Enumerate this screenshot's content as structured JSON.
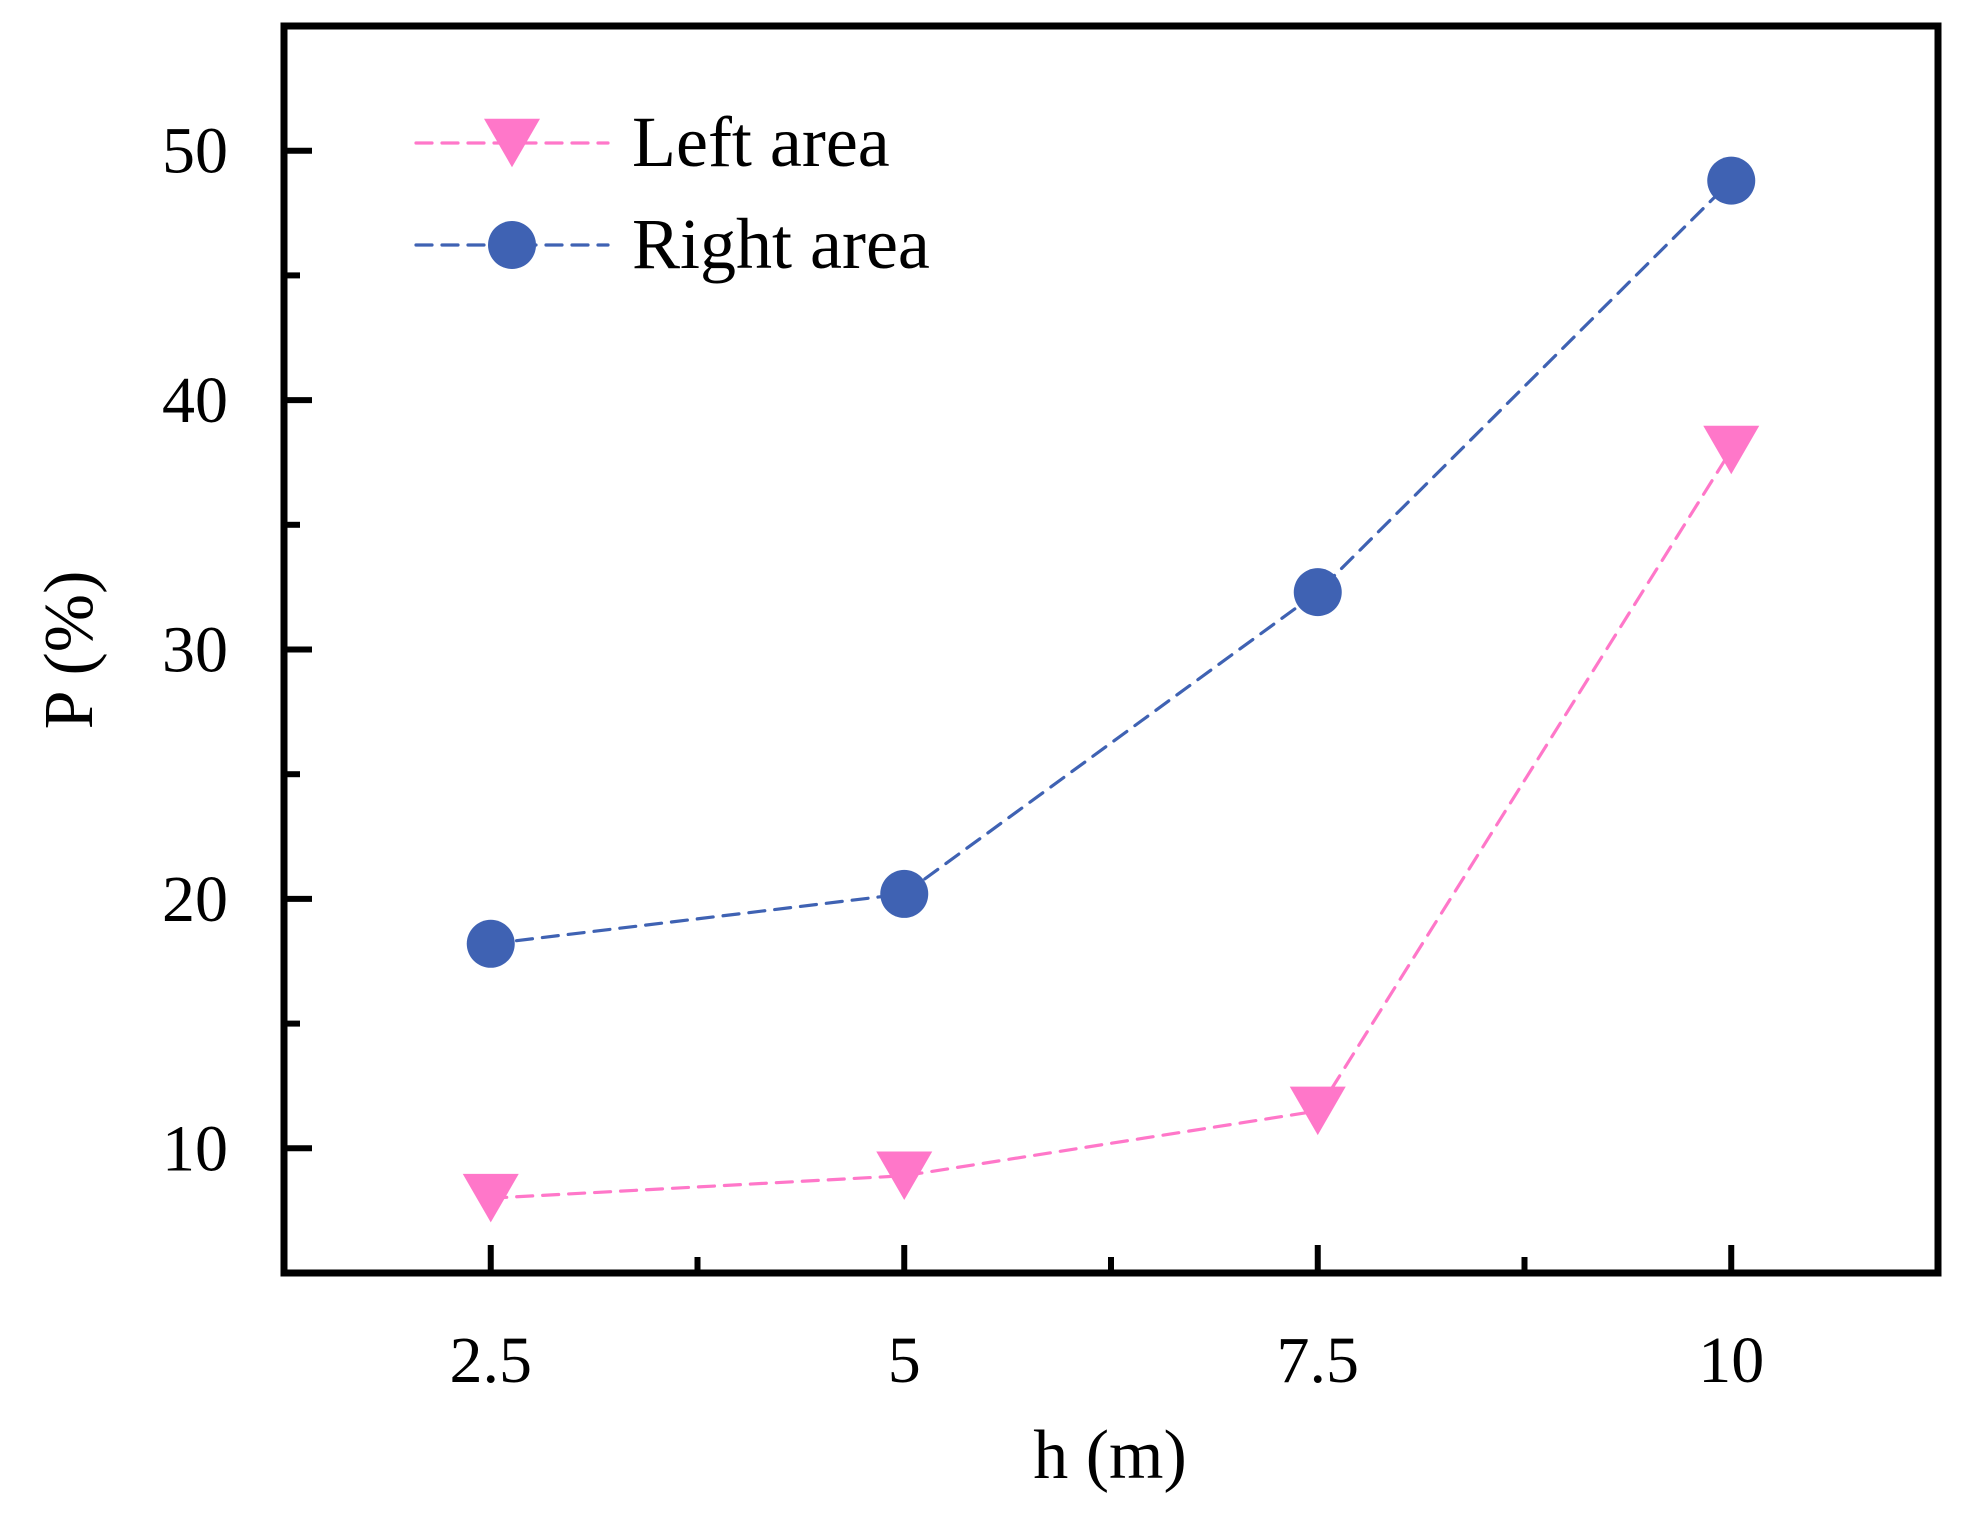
{
  "chart_data": {
    "type": "line",
    "title": "",
    "xlabel": "h (m)",
    "ylabel": "P (%)",
    "categories": [
      "2.5",
      "5",
      "7.5",
      "10"
    ],
    "x": [
      2.5,
      5,
      7.5,
      10
    ],
    "xlim": [
      1.25,
      11.25
    ],
    "ylim": [
      5,
      55
    ],
    "xticks": [
      "2.5",
      "5",
      "7.5",
      "10"
    ],
    "yticks": [
      "10",
      "20",
      "30",
      "40",
      "50"
    ],
    "legend_position": "top-left",
    "grid": false,
    "series": [
      {
        "name": "Left area",
        "marker": "triangle-down",
        "line_style": "dashed",
        "color": "#ff77c9",
        "values": [
          8.0,
          8.9,
          11.5,
          38.0
        ]
      },
      {
        "name": "Right area",
        "marker": "circle",
        "line_style": "dashed",
        "color": "#3f62b3",
        "values": [
          18.2,
          20.2,
          32.3,
          48.8
        ]
      }
    ]
  }
}
